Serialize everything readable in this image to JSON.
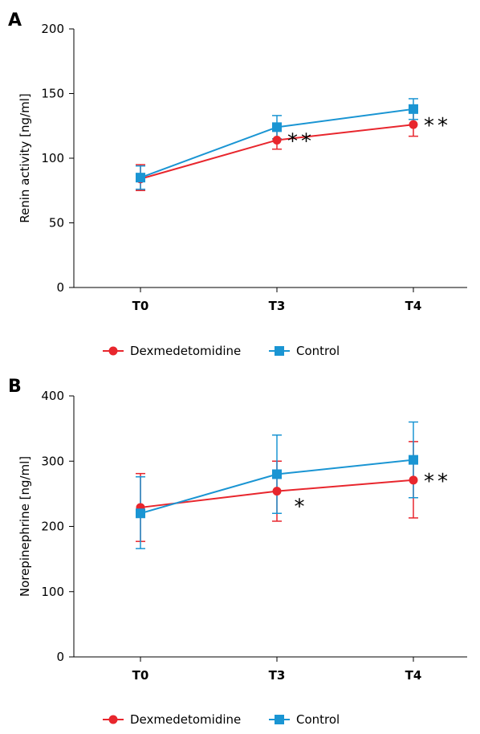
{
  "colors": {
    "dexmedetomidine": "#e8262d",
    "control": "#1a95d3"
  },
  "chart_data": [
    {
      "panel_label": "A",
      "type": "line",
      "categories": [
        "T0",
        "T3",
        "T4"
      ],
      "ylabel": "Renin activity [ng/ml]",
      "ylim": [
        0,
        200
      ],
      "yticks": [
        0,
        50,
        100,
        150,
        200
      ],
      "grid": false,
      "legend_position": "bottom",
      "series": [
        {
          "name": "Dexmedetomidine",
          "marker": "circle",
          "color": "#e8262d",
          "values": [
            84,
            114,
            126
          ],
          "err_low": [
            75,
            107,
            117
          ],
          "err_high": [
            95,
            121,
            135
          ]
        },
        {
          "name": "Control",
          "marker": "square",
          "color": "#1a95d3",
          "values": [
            85,
            124,
            138
          ],
          "err_low": [
            76,
            115,
            130
          ],
          "err_high": [
            94,
            133,
            146
          ]
        }
      ],
      "annotations": [
        {
          "category": "T3",
          "text": "**"
        },
        {
          "category": "T4",
          "text": "**"
        }
      ]
    },
    {
      "panel_label": "B",
      "type": "line",
      "categories": [
        "T0",
        "T3",
        "T4"
      ],
      "ylabel": "Norepinephrine [ng/ml]",
      "ylim": [
        0,
        400
      ],
      "yticks": [
        0,
        100,
        200,
        300,
        400
      ],
      "grid": false,
      "legend_position": "bottom",
      "series": [
        {
          "name": "Dexmedetomidine",
          "marker": "circle",
          "color": "#e8262d",
          "values": [
            229,
            254,
            271
          ],
          "err_low": [
            177,
            208,
            213
          ],
          "err_high": [
            281,
            300,
            330
          ]
        },
        {
          "name": "Control",
          "marker": "square",
          "color": "#1a95d3",
          "values": [
            220,
            280,
            302
          ],
          "err_low": [
            166,
            220,
            244
          ],
          "err_high": [
            276,
            340,
            360
          ]
        }
      ],
      "annotations": [
        {
          "category": "T3",
          "text": "*"
        },
        {
          "category": "T4",
          "text": "**"
        }
      ]
    }
  ]
}
